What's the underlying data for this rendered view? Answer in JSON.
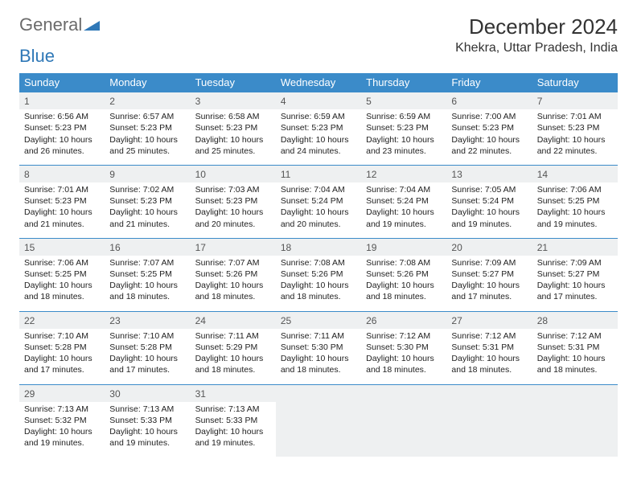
{
  "logo": {
    "word1": "General",
    "word2": "Blue"
  },
  "title": "December 2024",
  "location": "Khekra, Uttar Pradesh, India",
  "colors": {
    "header_bg": "#3b8bc9",
    "header_text": "#ffffff",
    "daynum_bg": "#eef0f1",
    "border": "#3b8bc9",
    "logo_gray": "#6b6b6b",
    "logo_blue": "#2f78b7"
  },
  "day_headers": [
    "Sunday",
    "Monday",
    "Tuesday",
    "Wednesday",
    "Thursday",
    "Friday",
    "Saturday"
  ],
  "weeks": [
    [
      {
        "n": "1",
        "sr": "Sunrise: 6:56 AM",
        "ss": "Sunset: 5:23 PM",
        "d1": "Daylight: 10 hours",
        "d2": "and 26 minutes."
      },
      {
        "n": "2",
        "sr": "Sunrise: 6:57 AM",
        "ss": "Sunset: 5:23 PM",
        "d1": "Daylight: 10 hours",
        "d2": "and 25 minutes."
      },
      {
        "n": "3",
        "sr": "Sunrise: 6:58 AM",
        "ss": "Sunset: 5:23 PM",
        "d1": "Daylight: 10 hours",
        "d2": "and 25 minutes."
      },
      {
        "n": "4",
        "sr": "Sunrise: 6:59 AM",
        "ss": "Sunset: 5:23 PM",
        "d1": "Daylight: 10 hours",
        "d2": "and 24 minutes."
      },
      {
        "n": "5",
        "sr": "Sunrise: 6:59 AM",
        "ss": "Sunset: 5:23 PM",
        "d1": "Daylight: 10 hours",
        "d2": "and 23 minutes."
      },
      {
        "n": "6",
        "sr": "Sunrise: 7:00 AM",
        "ss": "Sunset: 5:23 PM",
        "d1": "Daylight: 10 hours",
        "d2": "and 22 minutes."
      },
      {
        "n": "7",
        "sr": "Sunrise: 7:01 AM",
        "ss": "Sunset: 5:23 PM",
        "d1": "Daylight: 10 hours",
        "d2": "and 22 minutes."
      }
    ],
    [
      {
        "n": "8",
        "sr": "Sunrise: 7:01 AM",
        "ss": "Sunset: 5:23 PM",
        "d1": "Daylight: 10 hours",
        "d2": "and 21 minutes."
      },
      {
        "n": "9",
        "sr": "Sunrise: 7:02 AM",
        "ss": "Sunset: 5:23 PM",
        "d1": "Daylight: 10 hours",
        "d2": "and 21 minutes."
      },
      {
        "n": "10",
        "sr": "Sunrise: 7:03 AM",
        "ss": "Sunset: 5:23 PM",
        "d1": "Daylight: 10 hours",
        "d2": "and 20 minutes."
      },
      {
        "n": "11",
        "sr": "Sunrise: 7:04 AM",
        "ss": "Sunset: 5:24 PM",
        "d1": "Daylight: 10 hours",
        "d2": "and 20 minutes."
      },
      {
        "n": "12",
        "sr": "Sunrise: 7:04 AM",
        "ss": "Sunset: 5:24 PM",
        "d1": "Daylight: 10 hours",
        "d2": "and 19 minutes."
      },
      {
        "n": "13",
        "sr": "Sunrise: 7:05 AM",
        "ss": "Sunset: 5:24 PM",
        "d1": "Daylight: 10 hours",
        "d2": "and 19 minutes."
      },
      {
        "n": "14",
        "sr": "Sunrise: 7:06 AM",
        "ss": "Sunset: 5:25 PM",
        "d1": "Daylight: 10 hours",
        "d2": "and 19 minutes."
      }
    ],
    [
      {
        "n": "15",
        "sr": "Sunrise: 7:06 AM",
        "ss": "Sunset: 5:25 PM",
        "d1": "Daylight: 10 hours",
        "d2": "and 18 minutes."
      },
      {
        "n": "16",
        "sr": "Sunrise: 7:07 AM",
        "ss": "Sunset: 5:25 PM",
        "d1": "Daylight: 10 hours",
        "d2": "and 18 minutes."
      },
      {
        "n": "17",
        "sr": "Sunrise: 7:07 AM",
        "ss": "Sunset: 5:26 PM",
        "d1": "Daylight: 10 hours",
        "d2": "and 18 minutes."
      },
      {
        "n": "18",
        "sr": "Sunrise: 7:08 AM",
        "ss": "Sunset: 5:26 PM",
        "d1": "Daylight: 10 hours",
        "d2": "and 18 minutes."
      },
      {
        "n": "19",
        "sr": "Sunrise: 7:08 AM",
        "ss": "Sunset: 5:26 PM",
        "d1": "Daylight: 10 hours",
        "d2": "and 18 minutes."
      },
      {
        "n": "20",
        "sr": "Sunrise: 7:09 AM",
        "ss": "Sunset: 5:27 PM",
        "d1": "Daylight: 10 hours",
        "d2": "and 17 minutes."
      },
      {
        "n": "21",
        "sr": "Sunrise: 7:09 AM",
        "ss": "Sunset: 5:27 PM",
        "d1": "Daylight: 10 hours",
        "d2": "and 17 minutes."
      }
    ],
    [
      {
        "n": "22",
        "sr": "Sunrise: 7:10 AM",
        "ss": "Sunset: 5:28 PM",
        "d1": "Daylight: 10 hours",
        "d2": "and 17 minutes."
      },
      {
        "n": "23",
        "sr": "Sunrise: 7:10 AM",
        "ss": "Sunset: 5:28 PM",
        "d1": "Daylight: 10 hours",
        "d2": "and 17 minutes."
      },
      {
        "n": "24",
        "sr": "Sunrise: 7:11 AM",
        "ss": "Sunset: 5:29 PM",
        "d1": "Daylight: 10 hours",
        "d2": "and 18 minutes."
      },
      {
        "n": "25",
        "sr": "Sunrise: 7:11 AM",
        "ss": "Sunset: 5:30 PM",
        "d1": "Daylight: 10 hours",
        "d2": "and 18 minutes."
      },
      {
        "n": "26",
        "sr": "Sunrise: 7:12 AM",
        "ss": "Sunset: 5:30 PM",
        "d1": "Daylight: 10 hours",
        "d2": "and 18 minutes."
      },
      {
        "n": "27",
        "sr": "Sunrise: 7:12 AM",
        "ss": "Sunset: 5:31 PM",
        "d1": "Daylight: 10 hours",
        "d2": "and 18 minutes."
      },
      {
        "n": "28",
        "sr": "Sunrise: 7:12 AM",
        "ss": "Sunset: 5:31 PM",
        "d1": "Daylight: 10 hours",
        "d2": "and 18 minutes."
      }
    ],
    [
      {
        "n": "29",
        "sr": "Sunrise: 7:13 AM",
        "ss": "Sunset: 5:32 PM",
        "d1": "Daylight: 10 hours",
        "d2": "and 19 minutes."
      },
      {
        "n": "30",
        "sr": "Sunrise: 7:13 AM",
        "ss": "Sunset: 5:33 PM",
        "d1": "Daylight: 10 hours",
        "d2": "and 19 minutes."
      },
      {
        "n": "31",
        "sr": "Sunrise: 7:13 AM",
        "ss": "Sunset: 5:33 PM",
        "d1": "Daylight: 10 hours",
        "d2": "and 19 minutes."
      },
      null,
      null,
      null,
      null
    ]
  ]
}
